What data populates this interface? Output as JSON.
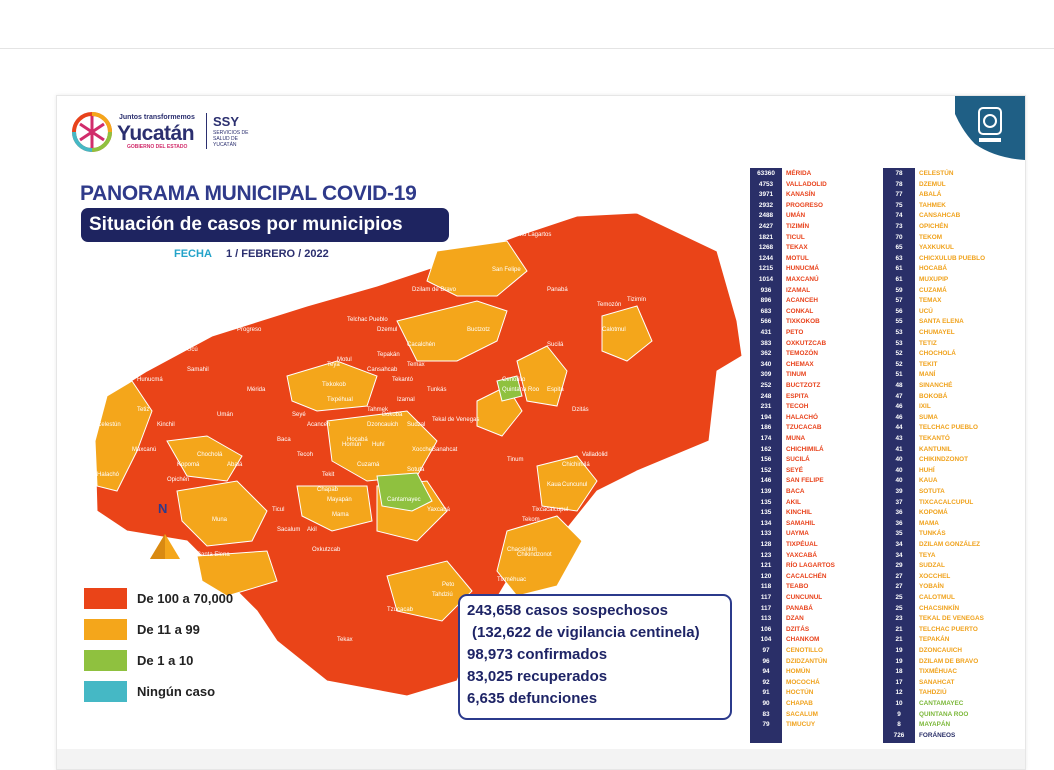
{
  "logos": {
    "yucatan_small": "Juntos transformemos",
    "yucatan_big": "Yucatán",
    "yucatan_tag": "GOBIERNO DEL ESTADO",
    "ssy": "SSY",
    "ssy_sub": "SERVICIOS DE SALUD DE YUCATÁN"
  },
  "header": {
    "title": "PANORAMA MUNICIPAL COVID-19",
    "subtitle": "Situación de casos por municipios",
    "fecha_label": "FECHA",
    "fecha_value": "1 / FEBRERO / 2022"
  },
  "map": {
    "north": "N",
    "labels": [
      "Río Lagartos",
      "San Felipe",
      "Dzilam de Bravo",
      "Tizimín",
      "Panabá",
      "Buctzotz",
      "Sucilá",
      "Progreso",
      "Hunucmá",
      "Mérida",
      "Celestún",
      "Tetiz",
      "Samahil",
      "Umán",
      "Kinchil",
      "Maxcanú",
      "Halachó",
      "Kopomá",
      "Abalá",
      "Opichén",
      "Chocholá",
      "Muna",
      "Santa Elena",
      "Ticul",
      "Sacalum",
      "Oxkutzcab",
      "Tekax",
      "Tzucacab",
      "Peto",
      "Tixméhuac",
      "Chacsinkín",
      "Tahdziú",
      "Yaxcabá",
      "Sotuta",
      "Cantamayec",
      "Hocabá",
      "Huhí",
      "Izamal",
      "Cenotillo",
      "Espita",
      "Calotmul",
      "Temozón",
      "Valladolid",
      "Chemax",
      "Tinum",
      "Chichimilá",
      "Kaua",
      "Tekom",
      "Chikindzonot",
      "Tixcacalcupul",
      "Cuncunul",
      "Tunkás",
      "Dzitás",
      "Quintana Roo",
      "Motul",
      "Temax",
      "Cansahcab",
      "Teya",
      "Tekantó",
      "Mama",
      "Mayapán",
      "Tekit",
      "Chapab",
      "Akil",
      "Dzemul",
      "Telchac Pueblo",
      "Tixkokob",
      "Acanceh",
      "Tecoh",
      "Homún",
      "Cacalchén",
      "Bokobá",
      "Sudzal",
      "Tepakán",
      "Tekal de Venegas",
      "Xocchel",
      "Seyé",
      "Cuzamá",
      "Tahmek",
      "Sanahcat",
      "Dzoncauich",
      "Tixpéhual",
      "Ucú",
      "Baca"
    ]
  },
  "legend": [
    {
      "label": "De 100 a 70,000",
      "color": "#ea4418"
    },
    {
      "label": "De 11 a 99",
      "color": "#f4a61b"
    },
    {
      "label": "De 1 a 10",
      "color": "#8fc13f"
    },
    {
      "label": "Ningún caso",
      "color": "#45b8c5"
    }
  ],
  "summary": [
    "243,658 casos sospechosos",
    "(132,622 de vigilancia centinela)",
    "98,973 confirmados",
    "83,025 recuperados",
    "6,635 defunciones"
  ],
  "colors": {
    "navy": "#2a2f68",
    "red_text": "#e8421b",
    "orange_text": "#f0a21c",
    "green_text": "#7cb83a"
  },
  "municipalities_col1": [
    {
      "n": "63360",
      "name": "MÉRIDA",
      "c": "r"
    },
    {
      "n": "4753",
      "name": "VALLADOLID",
      "c": "r"
    },
    {
      "n": "3971",
      "name": "KANASÍN",
      "c": "r"
    },
    {
      "n": "2932",
      "name": "PROGRESO",
      "c": "r"
    },
    {
      "n": "2488",
      "name": "UMÁN",
      "c": "r"
    },
    {
      "n": "2427",
      "name": "TIZIMÍN",
      "c": "r"
    },
    {
      "n": "1821",
      "name": "TICUL",
      "c": "r"
    },
    {
      "n": "1268",
      "name": "TEKAX",
      "c": "r"
    },
    {
      "n": "1244",
      "name": "MOTUL",
      "c": "r"
    },
    {
      "n": "1215",
      "name": "HUNUCMÁ",
      "c": "r"
    },
    {
      "n": "1014",
      "name": "MAXCANÚ",
      "c": "r"
    },
    {
      "n": "936",
      "name": "IZAMAL",
      "c": "r"
    },
    {
      "n": "896",
      "name": "ACANCEH",
      "c": "r"
    },
    {
      "n": "683",
      "name": "CONKAL",
      "c": "r"
    },
    {
      "n": "566",
      "name": "TIXKOKOB",
      "c": "r"
    },
    {
      "n": "431",
      "name": "PETO",
      "c": "r"
    },
    {
      "n": "383",
      "name": "OXKUTZCAB",
      "c": "r"
    },
    {
      "n": "362",
      "name": "TEMOZÓN",
      "c": "r"
    },
    {
      "n": "340",
      "name": "CHEMAX",
      "c": "r"
    },
    {
      "n": "309",
      "name": "TINUM",
      "c": "r"
    },
    {
      "n": "252",
      "name": "BUCTZOTZ",
      "c": "r"
    },
    {
      "n": "248",
      "name": "ESPITA",
      "c": "r"
    },
    {
      "n": "231",
      "name": "TECOH",
      "c": "r"
    },
    {
      "n": "194",
      "name": "HALACHÓ",
      "c": "r"
    },
    {
      "n": "186",
      "name": "TZUCACAB",
      "c": "r"
    },
    {
      "n": "174",
      "name": "MUNA",
      "c": "r"
    },
    {
      "n": "162",
      "name": "CHICHIMILÁ",
      "c": "r"
    },
    {
      "n": "156",
      "name": "SUCILÁ",
      "c": "r"
    },
    {
      "n": "152",
      "name": "SEYÉ",
      "c": "r"
    },
    {
      "n": "146",
      "name": "SAN FELIPE",
      "c": "r"
    },
    {
      "n": "139",
      "name": "BACA",
      "c": "r"
    },
    {
      "n": "135",
      "name": "AKIL",
      "c": "r"
    },
    {
      "n": "135",
      "name": "KINCHIL",
      "c": "r"
    },
    {
      "n": "134",
      "name": "SAMAHIL",
      "c": "r"
    },
    {
      "n": "133",
      "name": "UAYMA",
      "c": "r"
    },
    {
      "n": "128",
      "name": "TIXPÉUAL",
      "c": "r"
    },
    {
      "n": "123",
      "name": "YAXCABÁ",
      "c": "r"
    },
    {
      "n": "121",
      "name": "RÍO LAGARTOS",
      "c": "r"
    },
    {
      "n": "120",
      "name": "CACALCHÉN",
      "c": "r"
    },
    {
      "n": "118",
      "name": "TEABO",
      "c": "r"
    },
    {
      "n": "117",
      "name": "CUNCUNUL",
      "c": "r"
    },
    {
      "n": "117",
      "name": "PANABÁ",
      "c": "r"
    },
    {
      "n": "113",
      "name": "DZAN",
      "c": "r"
    },
    {
      "n": "106",
      "name": "DZITÁS",
      "c": "r"
    },
    {
      "n": "104",
      "name": "CHANKOM",
      "c": "r"
    },
    {
      "n": "97",
      "name": "CENOTILLO",
      "c": "o"
    },
    {
      "n": "96",
      "name": "DZIDZANTÚN",
      "c": "o"
    },
    {
      "n": "94",
      "name": "HOMÚN",
      "c": "o"
    },
    {
      "n": "92",
      "name": "MOCOCHÁ",
      "c": "o"
    },
    {
      "n": "91",
      "name": "HOCTÚN",
      "c": "o"
    },
    {
      "n": "90",
      "name": "CHAPAB",
      "c": "o"
    },
    {
      "n": "83",
      "name": "SACALUM",
      "c": "o"
    },
    {
      "n": "79",
      "name": "TIMUCUY",
      "c": "o"
    }
  ],
  "municipalities_col2": [
    {
      "n": "78",
      "name": "CELESTÚN",
      "c": "o"
    },
    {
      "n": "78",
      "name": "DZEMUL",
      "c": "o"
    },
    {
      "n": "77",
      "name": "ABALÁ",
      "c": "o"
    },
    {
      "n": "75",
      "name": "TAHMEK",
      "c": "o"
    },
    {
      "n": "74",
      "name": "CANSAHCAB",
      "c": "o"
    },
    {
      "n": "73",
      "name": "OPICHÉN",
      "c": "o"
    },
    {
      "n": "70",
      "name": "TEKOM",
      "c": "o"
    },
    {
      "n": "65",
      "name": "YAXKUKUL",
      "c": "o"
    },
    {
      "n": "63",
      "name": "CHICXULUB PUEBLO",
      "c": "o"
    },
    {
      "n": "61",
      "name": "HOCABÁ",
      "c": "o"
    },
    {
      "n": "61",
      "name": "MUXUPIP",
      "c": "o"
    },
    {
      "n": "59",
      "name": "CUZAMÁ",
      "c": "o"
    },
    {
      "n": "57",
      "name": "TEMAX",
      "c": "o"
    },
    {
      "n": "56",
      "name": "UCÚ",
      "c": "o"
    },
    {
      "n": "55",
      "name": "SANTA ELENA",
      "c": "o"
    },
    {
      "n": "53",
      "name": "CHUMAYEL",
      "c": "o"
    },
    {
      "n": "53",
      "name": "TETIZ",
      "c": "o"
    },
    {
      "n": "52",
      "name": "CHOCHOLÁ",
      "c": "o"
    },
    {
      "n": "52",
      "name": "TEKIT",
      "c": "o"
    },
    {
      "n": "51",
      "name": "MANÍ",
      "c": "o"
    },
    {
      "n": "48",
      "name": "SINANCHÉ",
      "c": "o"
    },
    {
      "n": "47",
      "name": "BOKOBÁ",
      "c": "o"
    },
    {
      "n": "46",
      "name": "IXIL",
      "c": "o"
    },
    {
      "n": "46",
      "name": "SUMA",
      "c": "o"
    },
    {
      "n": "44",
      "name": "TELCHAC PUEBLO",
      "c": "o"
    },
    {
      "n": "43",
      "name": "TEKANTÓ",
      "c": "o"
    },
    {
      "n": "41",
      "name": "KANTUNIL",
      "c": "o"
    },
    {
      "n": "40",
      "name": "CHIKINDZONOT",
      "c": "o"
    },
    {
      "n": "40",
      "name": "HUHÍ",
      "c": "o"
    },
    {
      "n": "40",
      "name": "KAUA",
      "c": "o"
    },
    {
      "n": "39",
      "name": "SOTUTA",
      "c": "o"
    },
    {
      "n": "37",
      "name": "TIXCACALCUPUL",
      "c": "o"
    },
    {
      "n": "36",
      "name": "KOPOMÁ",
      "c": "o"
    },
    {
      "n": "36",
      "name": "MAMA",
      "c": "o"
    },
    {
      "n": "35",
      "name": "TUNKÁS",
      "c": "o"
    },
    {
      "n": "34",
      "name": "DZILAM GONZÁLEZ",
      "c": "o"
    },
    {
      "n": "34",
      "name": "TEYA",
      "c": "o"
    },
    {
      "n": "29",
      "name": "SUDZAL",
      "c": "o"
    },
    {
      "n": "27",
      "name": "XOCCHEL",
      "c": "o"
    },
    {
      "n": "27",
      "name": "YOBAÍN",
      "c": "o"
    },
    {
      "n": "25",
      "name": "CALOTMUL",
      "c": "o"
    },
    {
      "n": "25",
      "name": "CHACSINKÍN",
      "c": "o"
    },
    {
      "n": "23",
      "name": "TEKAL DE VENEGAS",
      "c": "o"
    },
    {
      "n": "21",
      "name": "TELCHAC PUERTO",
      "c": "o"
    },
    {
      "n": "21",
      "name": "TEPAKÁN",
      "c": "o"
    },
    {
      "n": "19",
      "name": "DZONCAUICH",
      "c": "o"
    },
    {
      "n": "19",
      "name": "DZILAM DE BRAVO",
      "c": "o"
    },
    {
      "n": "18",
      "name": "TIXMÉHUAC",
      "c": "o"
    },
    {
      "n": "17",
      "name": "SANAHCAT",
      "c": "o"
    },
    {
      "n": "12",
      "name": "TAHDZIÚ",
      "c": "o"
    },
    {
      "n": "10",
      "name": "CANTAMAYEC",
      "c": "g"
    },
    {
      "n": "9",
      "name": "QUINTANA ROO",
      "c": "g"
    },
    {
      "n": "8",
      "name": "MAYAPÁN",
      "c": "g"
    },
    {
      "n": "726",
      "name": "FORÁNEOS",
      "c": "n"
    }
  ]
}
